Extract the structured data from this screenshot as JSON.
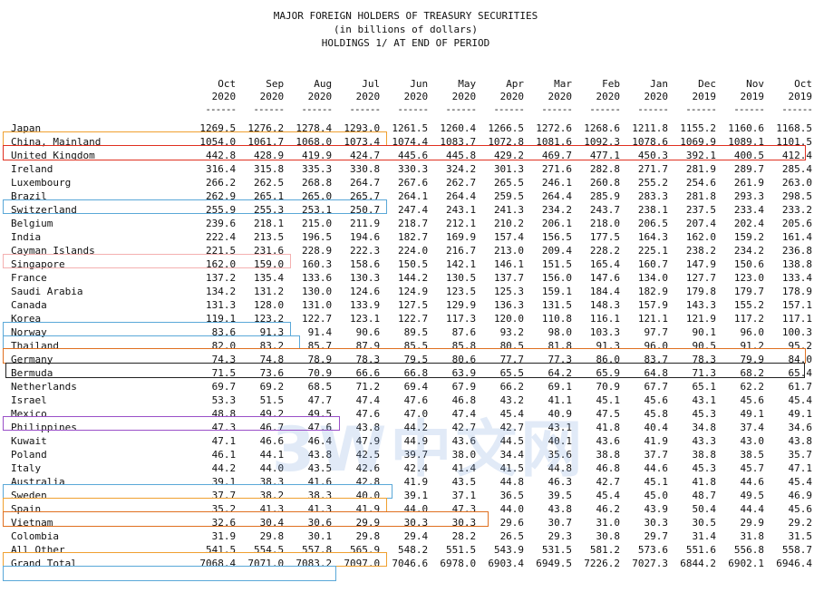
{
  "title": {
    "line1": "MAJOR FOREIGN HOLDERS OF TREASURY SECURITIES",
    "line2": "(in billions of dollars)",
    "line3": "HOLDINGS 1/ AT END OF PERIOD"
  },
  "columns": [
    {
      "month": "Oct",
      "year": "2020"
    },
    {
      "month": "Sep",
      "year": "2020"
    },
    {
      "month": "Aug",
      "year": "2020"
    },
    {
      "month": "Jul",
      "year": "2020"
    },
    {
      "month": "Jun",
      "year": "2020"
    },
    {
      "month": "May",
      "year": "2020"
    },
    {
      "month": "Apr",
      "year": "2020"
    },
    {
      "month": "Mar",
      "year": "2020"
    },
    {
      "month": "Feb",
      "year": "2020"
    },
    {
      "month": "Jan",
      "year": "2020"
    },
    {
      "month": "Dec",
      "year": "2019"
    },
    {
      "month": "Nov",
      "year": "2019"
    },
    {
      "month": "Oct",
      "year": "2019"
    }
  ],
  "underline": "------",
  "rows": [
    {
      "name": "Japan",
      "values": [
        "1269.5",
        "1276.2",
        "1278.4",
        "1293.0",
        "1261.5",
        "1260.4",
        "1266.5",
        "1272.6",
        "1268.6",
        "1211.8",
        "1155.2",
        "1160.6",
        "1168.5"
      ]
    },
    {
      "name": "China, Mainland",
      "values": [
        "1054.0",
        "1061.7",
        "1068.0",
        "1073.4",
        "1074.4",
        "1083.7",
        "1072.8",
        "1081.6",
        "1092.3",
        "1078.6",
        "1069.9",
        "1089.1",
        "1101.5"
      ]
    },
    {
      "name": "United Kingdom",
      "values": [
        "442.8",
        "428.9",
        "419.9",
        "424.7",
        "445.6",
        "445.8",
        "429.2",
        "469.7",
        "477.1",
        "450.3",
        "392.1",
        "400.5",
        "412.4"
      ]
    },
    {
      "name": "Ireland",
      "values": [
        "316.4",
        "315.8",
        "335.3",
        "330.8",
        "330.3",
        "324.2",
        "301.3",
        "271.6",
        "282.8",
        "271.7",
        "281.9",
        "289.7",
        "285.4"
      ]
    },
    {
      "name": "Luxembourg",
      "values": [
        "266.2",
        "262.5",
        "268.8",
        "264.7",
        "267.6",
        "262.7",
        "265.5",
        "246.1",
        "260.8",
        "255.2",
        "254.6",
        "261.9",
        "263.0"
      ]
    },
    {
      "name": "Brazil",
      "values": [
        "262.9",
        "265.1",
        "265.0",
        "265.7",
        "264.1",
        "264.4",
        "259.5",
        "264.4",
        "285.9",
        "283.3",
        "281.8",
        "293.3",
        "298.5"
      ]
    },
    {
      "name": "Switzerland",
      "values": [
        "255.9",
        "255.3",
        "253.1",
        "250.7",
        "247.4",
        "243.1",
        "241.3",
        "234.2",
        "243.7",
        "238.1",
        "237.5",
        "233.4",
        "233.2"
      ]
    },
    {
      "name": "Belgium",
      "values": [
        "239.6",
        "218.1",
        "215.0",
        "211.9",
        "218.7",
        "212.1",
        "210.2",
        "206.1",
        "218.0",
        "206.5",
        "207.4",
        "202.4",
        "205.6"
      ]
    },
    {
      "name": "India",
      "values": [
        "222.4",
        "213.5",
        "196.5",
        "194.6",
        "182.7",
        "169.9",
        "157.4",
        "156.5",
        "177.5",
        "164.3",
        "162.0",
        "159.2",
        "161.4"
      ]
    },
    {
      "name": "Cayman Islands",
      "values": [
        "221.5",
        "231.6",
        "228.9",
        "222.3",
        "224.0",
        "216.7",
        "213.0",
        "209.4",
        "228.2",
        "225.1",
        "238.2",
        "234.2",
        "236.8"
      ]
    },
    {
      "name": "Singapore",
      "values": [
        "162.0",
        "159.0",
        "160.3",
        "158.6",
        "150.5",
        "142.1",
        "146.1",
        "151.5",
        "165.4",
        "160.7",
        "147.9",
        "150.6",
        "138.8"
      ]
    },
    {
      "name": "France",
      "values": [
        "137.2",
        "135.4",
        "133.6",
        "130.3",
        "144.2",
        "130.5",
        "137.7",
        "156.0",
        "147.6",
        "134.0",
        "127.7",
        "123.0",
        "133.4"
      ]
    },
    {
      "name": "Saudi Arabia",
      "values": [
        "134.2",
        "131.2",
        "130.0",
        "124.6",
        "124.9",
        "123.5",
        "125.3",
        "159.1",
        "184.4",
        "182.9",
        "179.8",
        "179.7",
        "178.9"
      ]
    },
    {
      "name": "Canada",
      "values": [
        "131.3",
        "128.0",
        "131.0",
        "133.9",
        "127.5",
        "129.9",
        "136.3",
        "131.5",
        "148.3",
        "157.9",
        "143.3",
        "155.2",
        "157.1"
      ]
    },
    {
      "name": "Korea",
      "values": [
        "119.1",
        "123.2",
        "122.7",
        "123.1",
        "122.7",
        "117.3",
        "120.0",
        "110.8",
        "116.1",
        "121.1",
        "121.9",
        "117.2",
        "117.1"
      ]
    },
    {
      "name": "Norway",
      "values": [
        "83.6",
        "91.3",
        "91.4",
        "90.6",
        "89.5",
        "87.6",
        "93.2",
        "98.0",
        "103.3",
        "97.7",
        "90.1",
        "96.0",
        "100.3"
      ]
    },
    {
      "name": "Thailand",
      "values": [
        "82.0",
        "83.2",
        "85.7",
        "87.9",
        "85.5",
        "85.8",
        "80.5",
        "81.8",
        "91.3",
        "96.0",
        "90.5",
        "91.2",
        "95.2"
      ]
    },
    {
      "name": "Germany",
      "values": [
        "74.3",
        "74.8",
        "78.9",
        "78.3",
        "79.5",
        "80.6",
        "77.7",
        "77.3",
        "86.0",
        "83.7",
        "78.3",
        "79.9",
        "84.0"
      ]
    },
    {
      "name": "Bermuda",
      "values": [
        "71.5",
        "73.6",
        "70.9",
        "66.6",
        "66.8",
        "63.9",
        "65.5",
        "64.2",
        "65.9",
        "64.8",
        "71.3",
        "68.2",
        "65.4"
      ]
    },
    {
      "name": "Netherlands",
      "values": [
        "69.7",
        "69.2",
        "68.5",
        "71.2",
        "69.4",
        "67.9",
        "66.2",
        "69.1",
        "70.9",
        "67.7",
        "65.1",
        "62.2",
        "61.7"
      ]
    },
    {
      "name": "Israel",
      "values": [
        "53.3",
        "51.5",
        "47.7",
        "47.4",
        "47.6",
        "46.8",
        "43.2",
        "41.1",
        "45.1",
        "45.6",
        "43.1",
        "45.6",
        "45.4"
      ]
    },
    {
      "name": "Mexico",
      "values": [
        "48.8",
        "49.2",
        "49.5",
        "47.6",
        "47.0",
        "47.4",
        "45.4",
        "40.9",
        "47.5",
        "45.8",
        "45.3",
        "49.1",
        "49.1"
      ]
    },
    {
      "name": "Philippines",
      "values": [
        "47.3",
        "46.7",
        "47.6",
        "43.8",
        "44.2",
        "42.7",
        "42.7",
        "43.1",
        "41.8",
        "40.4",
        "34.8",
        "37.4",
        "34.6"
      ]
    },
    {
      "name": "Kuwait",
      "values": [
        "47.1",
        "46.6",
        "46.4",
        "47.9",
        "44.9",
        "43.6",
        "44.5",
        "40.1",
        "43.6",
        "41.9",
        "43.3",
        "43.0",
        "43.8"
      ]
    },
    {
      "name": "Poland",
      "values": [
        "46.1",
        "44.1",
        "43.8",
        "42.5",
        "39.7",
        "38.0",
        "34.4",
        "35.6",
        "38.8",
        "37.7",
        "38.8",
        "38.5",
        "35.7"
      ]
    },
    {
      "name": "Italy",
      "values": [
        "44.2",
        "44.0",
        "43.5",
        "42.6",
        "42.4",
        "41.4",
        "41.5",
        "44.8",
        "46.8",
        "44.6",
        "45.3",
        "45.7",
        "47.1"
      ]
    },
    {
      "name": "Australia",
      "values": [
        "39.1",
        "38.3",
        "41.6",
        "42.8",
        "41.9",
        "43.5",
        "44.8",
        "46.3",
        "42.7",
        "45.1",
        "41.8",
        "44.6",
        "45.4"
      ]
    },
    {
      "name": "Sweden",
      "values": [
        "37.7",
        "38.2",
        "38.3",
        "40.0",
        "39.1",
        "37.1",
        "36.5",
        "39.5",
        "45.4",
        "45.0",
        "48.7",
        "49.5",
        "46.9"
      ]
    },
    {
      "name": "Spain",
      "values": [
        "35.2",
        "41.3",
        "41.3",
        "41.9",
        "44.0",
        "47.3",
        "44.0",
        "43.8",
        "46.2",
        "43.9",
        "50.4",
        "44.4",
        "45.6"
      ]
    },
    {
      "name": "Vietnam",
      "values": [
        "32.6",
        "30.4",
        "30.6",
        "29.9",
        "30.3",
        "30.3",
        "29.6",
        "30.7",
        "31.0",
        "30.3",
        "30.5",
        "29.9",
        "29.2"
      ]
    },
    {
      "name": "Colombia",
      "values": [
        "31.9",
        "29.8",
        "30.1",
        "29.8",
        "29.4",
        "28.2",
        "26.5",
        "29.3",
        "30.8",
        "29.7",
        "31.4",
        "31.8",
        "31.5"
      ]
    },
    {
      "name": "All Other",
      "values": [
        "541.5",
        "554.5",
        "557.8",
        "565.9",
        "548.2",
        "551.5",
        "543.9",
        "531.5",
        "581.2",
        "573.6",
        "551.6",
        "556.8",
        "558.7"
      ]
    }
  ],
  "total": {
    "name": "Grand Total",
    "values": [
      "7068.4",
      "7071.0",
      "7083.2",
      "7097.0",
      "7046.6",
      "6978.0",
      "6903.4",
      "6949.5",
      "7226.2",
      "7027.3",
      "6844.2",
      "6902.1",
      "6946.4"
    ]
  },
  "watermark": "3W中文网",
  "colors": {
    "orange": "#f0a030",
    "red": "#e03020",
    "blue": "#5aa8d8",
    "purple": "#9a50c8",
    "black": "#222222",
    "lightred": "#f4b0b0"
  }
}
